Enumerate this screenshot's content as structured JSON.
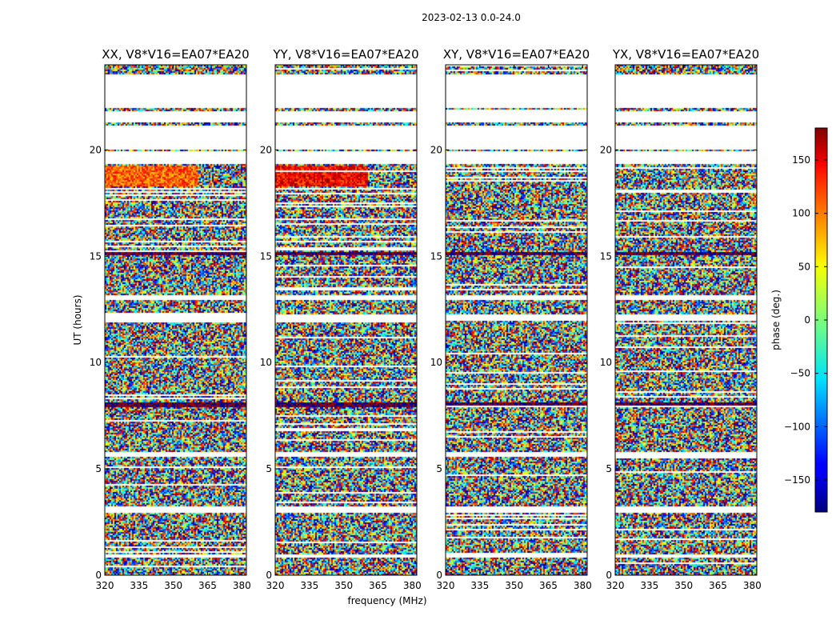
{
  "suptitle": "2023-02-13 0.0-24.0",
  "chart_data": {
    "type": "heatmap",
    "title": "2023-02-13 0.0-24.0",
    "xlabel": "frequency (MHz)",
    "ylabel": "UT (hours)",
    "xlim": [
      320,
      382
    ],
    "ylim": [
      0,
      24
    ],
    "xticks": [
      320,
      335,
      350,
      365,
      380
    ],
    "yticks": [
      0,
      5,
      10,
      15,
      20
    ],
    "panels": [
      {
        "name": "XX",
        "title": "XX, V8*V16=EA07*EA20",
        "warm_band": [
          18.3,
          19.3
        ],
        "warm_level": 0.78
      },
      {
        "name": "YY",
        "title": "YY, V8*V16=EA07*EA20",
        "warm_band": [
          18.3,
          19.3
        ],
        "warm_level": 0.88
      },
      {
        "name": "XY",
        "title": "XY, V8*V16=EA07*EA20",
        "warm_band": null,
        "warm_level": null
      },
      {
        "name": "YX",
        "title": "YX, V8*V16=EA07*EA20",
        "warm_band": null,
        "warm_level": null
      }
    ],
    "flagged_bands_hours": [
      [
        22.0,
        23.6
      ],
      [
        21.35,
        21.85
      ],
      [
        20.05,
        21.15
      ],
      [
        19.35,
        19.95
      ],
      [
        12.0,
        12.3
      ],
      [
        13.0,
        13.2
      ],
      [
        5.6,
        5.85
      ],
      [
        3.0,
        3.3
      ],
      [
        0.9,
        1.05
      ]
    ],
    "dark_lines_hours": [
      15.1,
      15.2,
      8.0,
      8.1,
      23.5
    ],
    "colorbar": {
      "label": "phase (deg.)",
      "min": -180,
      "max": 180,
      "ticks": [
        150,
        100,
        50,
        0,
        -50,
        -100,
        -150
      ],
      "tick_labels": [
        "150",
        "100",
        "50",
        "0",
        "−50",
        "−100",
        "−150"
      ],
      "colormap": "jet"
    }
  }
}
